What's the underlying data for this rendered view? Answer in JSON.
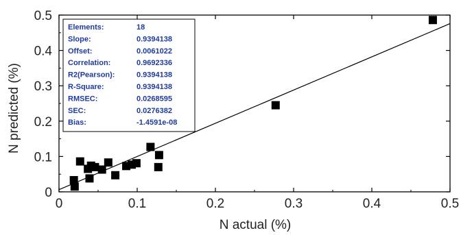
{
  "chart_data": {
    "type": "scatter",
    "xlabel": "N actual (%)",
    "ylabel": "N predicted (%)",
    "xlim": [
      0,
      0.5
    ],
    "ylim": [
      0,
      0.5
    ],
    "x_ticks": [
      "0",
      "0.1",
      "0.2",
      "0.3",
      "0.4",
      "0.5"
    ],
    "y_ticks": [
      "0",
      "0.1",
      "0.2",
      "0.3",
      "0.4",
      "0.5"
    ],
    "x_tick_values": [
      0,
      0.1,
      0.2,
      0.3,
      0.4,
      0.5
    ],
    "y_tick_values": [
      0,
      0.1,
      0.2,
      0.3,
      0.4,
      0.5
    ],
    "points": [
      {
        "x": 0.019,
        "y": 0.033
      },
      {
        "x": 0.02,
        "y": 0.015
      },
      {
        "x": 0.027,
        "y": 0.086
      },
      {
        "x": 0.037,
        "y": 0.065
      },
      {
        "x": 0.039,
        "y": 0.038
      },
      {
        "x": 0.041,
        "y": 0.074
      },
      {
        "x": 0.046,
        "y": 0.07
      },
      {
        "x": 0.055,
        "y": 0.063
      },
      {
        "x": 0.063,
        "y": 0.083
      },
      {
        "x": 0.072,
        "y": 0.047
      },
      {
        "x": 0.086,
        "y": 0.073
      },
      {
        "x": 0.093,
        "y": 0.077
      },
      {
        "x": 0.099,
        "y": 0.081
      },
      {
        "x": 0.117,
        "y": 0.127
      },
      {
        "x": 0.128,
        "y": 0.104
      },
      {
        "x": 0.127,
        "y": 0.07
      },
      {
        "x": 0.277,
        "y": 0.245
      },
      {
        "x": 0.478,
        "y": 0.486
      }
    ],
    "fit_line": {
      "slope": 0.9394138,
      "offset": 0.0061022
    },
    "stats": [
      {
        "label": "Elements:",
        "value": "18"
      },
      {
        "label": "Slope:",
        "value": "0.9394138"
      },
      {
        "label": "Offset:",
        "value": "0.0061022"
      },
      {
        "label": "Correlation:",
        "value": "0.9692336"
      },
      {
        "label": "R2(Pearson):",
        "value": "0.9394138"
      },
      {
        "label": "R-Square:",
        "value": "0.9394138"
      },
      {
        "label": "RMSEC:",
        "value": "0.0268595"
      },
      {
        "label": "SEC:",
        "value": "0.0276382"
      },
      {
        "label": "Bias:",
        "value": "-1.4591e-08"
      }
    ],
    "grid": false,
    "colors": {
      "points": "#000000",
      "stats_text": "#1f3a9e",
      "line": "#000000"
    }
  }
}
